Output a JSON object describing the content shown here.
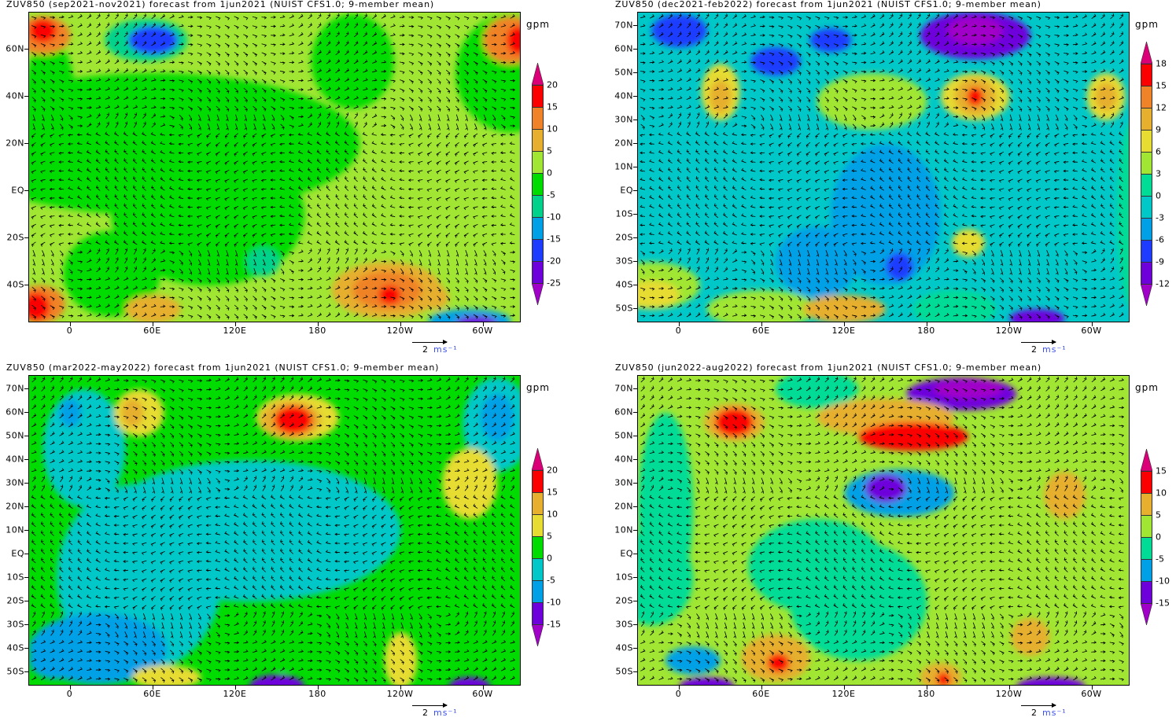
{
  "panels": [
    {
      "title": "ZUV850 (sep2021-nov2021) forecast from 1jun2021 (NUIST CFS1.0; 9-member mean)",
      "unit": "gpm",
      "lat_labels": [
        "60N",
        "40N",
        "20N",
        "EQ",
        "20S",
        "40S"
      ],
      "lat_values": [
        60,
        40,
        20,
        0,
        -20,
        -40
      ],
      "lon_labels": [
        "0",
        "60E",
        "120E",
        "180",
        "120W",
        "60W"
      ],
      "colorbar": {
        "labels": [
          "20",
          "15",
          "10",
          "5",
          "0",
          "-5",
          "-10",
          "-15",
          "-20",
          "-25"
        ],
        "colors": [
          "#dc0078",
          "#fa0000",
          "#f08228",
          "#e6af2d",
          "#a0e632",
          "#00dc00",
          "#00d28c",
          "#00a0e6",
          "#1e3cff",
          "#6e00dc",
          "#a000c8"
        ]
      },
      "vector_legend": {
        "magnitude": "2",
        "units": "ms⁻¹"
      }
    },
    {
      "title": "ZUV850 (dec2021-feb2022) forecast from 1jun2021 (NUIST CFS1.0; 9-member mean)",
      "unit": "gpm",
      "lat_labels": [
        "70N",
        "60N",
        "50N",
        "40N",
        "30N",
        "20N",
        "10N",
        "EQ",
        "10S",
        "20S",
        "30S",
        "40S",
        "50S"
      ],
      "lat_values": [
        70,
        60,
        50,
        40,
        30,
        20,
        10,
        0,
        -10,
        -20,
        -30,
        -40,
        -50
      ],
      "lon_labels": [
        "0",
        "60E",
        "120E",
        "180",
        "120W",
        "60W"
      ],
      "colorbar": {
        "labels": [
          "18",
          "15",
          "12",
          "9",
          "6",
          "3",
          "0",
          "-3",
          "-6",
          "-9",
          "-12"
        ],
        "colors": [
          "#dc0078",
          "#fa0000",
          "#f08228",
          "#e6af2d",
          "#e6dc32",
          "#a0e632",
          "#00dc96",
          "#00c8c8",
          "#00a0e6",
          "#1e3cff",
          "#6e00dc",
          "#a000c8"
        ]
      },
      "vector_legend": {
        "magnitude": "2",
        "units": "ms⁻¹"
      }
    },
    {
      "title": "ZUV850 (mar2022-may2022) forecast from 1jun2021 (NUIST CFS1.0; 9-member mean)",
      "unit": "gpm",
      "lat_labels": [
        "70N",
        "60N",
        "50N",
        "40N",
        "30N",
        "20N",
        "10N",
        "EQ",
        "10S",
        "20S",
        "30S",
        "40S",
        "50S"
      ],
      "lat_values": [
        70,
        60,
        50,
        40,
        30,
        20,
        10,
        0,
        -10,
        -20,
        -30,
        -40,
        -50
      ],
      "lon_labels": [
        "0",
        "60E",
        "120E",
        "180",
        "120W",
        "60W"
      ],
      "colorbar": {
        "labels": [
          "20",
          "15",
          "10",
          "5",
          "0",
          "-5",
          "-10",
          "-15"
        ],
        "colors": [
          "#dc0078",
          "#fa0000",
          "#e6af2d",
          "#e6dc32",
          "#00dc00",
          "#00c8c8",
          "#00a0e6",
          "#6e00dc",
          "#a000c8"
        ]
      },
      "vector_legend": {
        "magnitude": "2",
        "units": "ms⁻¹"
      }
    },
    {
      "title": "ZUV850 (jun2022-aug2022) forecast from 1jun2021 (NUIST CFS1.0; 9-member mean)",
      "unit": "gpm",
      "lat_labels": [
        "70N",
        "60N",
        "50N",
        "40N",
        "30N",
        "20N",
        "10N",
        "EQ",
        "10S",
        "20S",
        "30S",
        "40S",
        "50S"
      ],
      "lat_values": [
        70,
        60,
        50,
        40,
        30,
        20,
        10,
        0,
        -10,
        -20,
        -30,
        -40,
        -50
      ],
      "lon_labels": [
        "0",
        "60E",
        "120E",
        "180",
        "120W",
        "60W"
      ],
      "colorbar": {
        "labels": [
          "15",
          "10",
          "5",
          "0",
          "-5",
          "-10",
          "-15"
        ],
        "colors": [
          "#dc0078",
          "#fa0000",
          "#e6af2d",
          "#a0e632",
          "#00dc96",
          "#00a0e6",
          "#6e00dc",
          "#a000c8"
        ]
      },
      "vector_legend": {
        "magnitude": "2",
        "units": "ms⁻¹"
      }
    }
  ]
}
